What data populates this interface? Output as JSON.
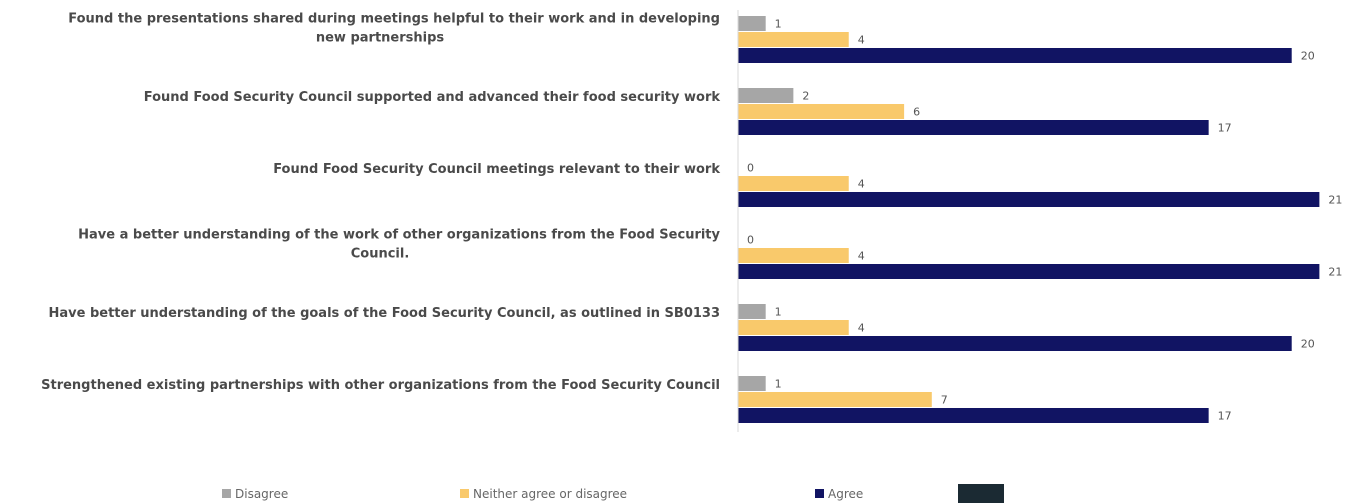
{
  "chart_data": {
    "type": "bar",
    "orientation": "horizontal",
    "categories": [
      [
        "Found the presentations shared during meetings helpful to their work and in developing",
        "new partnerships"
      ],
      [
        "Found Food Security Council supported and advanced their food security work"
      ],
      [
        "Found Food Security Council meetings relevant to their work"
      ],
      [
        "Have a better understanding of the work of other organizations from the Food Security",
        "Council."
      ],
      [
        "Have better understanding of the goals of the Food Security Council, as outlined in SB0133"
      ],
      [
        "Strengthened existing partnerships with other organizations from the Food Security Council"
      ]
    ],
    "series": [
      {
        "name": "Disagree",
        "color": "#a6a6a6",
        "values": [
          1,
          2,
          0,
          0,
          1,
          1
        ]
      },
      {
        "name": "Neither agree or disagree",
        "color": "#f9c96b",
        "values": [
          4,
          6,
          4,
          4,
          4,
          7
        ]
      },
      {
        "name": "Agree",
        "color": "#111463",
        "values": [
          20,
          17,
          21,
          21,
          20,
          17
        ]
      }
    ],
    "xlim": [
      0,
      21.6
    ],
    "legend_position": "bottom",
    "grid": false
  }
}
